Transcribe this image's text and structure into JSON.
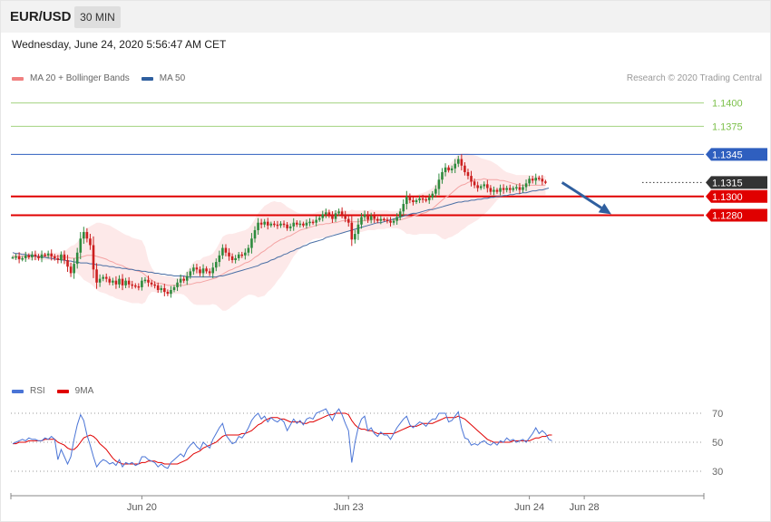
{
  "header": {
    "symbol": "EUR/USD",
    "timeframe": "30 MIN",
    "datetime": "Wednesday, June 24, 2020 5:56:47 AM CET"
  },
  "price_legend": [
    {
      "label": "MA 20 + Bollinger Bands",
      "color": "#f08080"
    },
    {
      "label": "MA 50",
      "color": "#2f5f9f"
    }
  ],
  "rsi_legend": [
    {
      "label": "RSI",
      "color": "#4a74d6"
    },
    {
      "label": "9MA",
      "color": "#e00000"
    }
  ],
  "copyright": "Research © 2020 Trading Central",
  "colors": {
    "bull": "#2e8b3e",
    "bear": "#cc1f1f",
    "band": "#fde3e3",
    "ma20": "#f4a3a3",
    "ma50": "#4a6fa5",
    "resistance_green": "#7cc04a",
    "resistance_blue": "#2f5fbf",
    "support_red": "#e00000",
    "arrow": "#2f5f9f",
    "current_price_bg": "#333333"
  },
  "chart_data": [
    {
      "type": "candlestick",
      "ylim": [
        1.1108,
        1.1418
      ],
      "levels": [
        {
          "value": 1.14,
          "label": "1.1400",
          "kind": "line",
          "color": "#7cc04a"
        },
        {
          "value": 1.1375,
          "label": "1.1375",
          "kind": "line",
          "color": "#7cc04a"
        },
        {
          "value": 1.1345,
          "label": "1.1345",
          "kind": "badge",
          "color": "#2f5fbf"
        },
        {
          "value": 1.1315,
          "label": "1.1315",
          "kind": "current",
          "color": "#333333"
        },
        {
          "value": 1.13,
          "label": "1.1300",
          "kind": "badge",
          "color": "#e00000"
        },
        {
          "value": 1.128,
          "label": "1.1280",
          "kind": "badge",
          "color": "#e00000"
        }
      ],
      "x_ticks": [
        {
          "label": "Jun 20",
          "index": 40
        },
        {
          "label": "Jun 23",
          "index": 104
        },
        {
          "label": "Jun 24",
          "index": 160
        },
        {
          "label": "Jun 28",
          "index": 177
        }
      ],
      "close": [
        1.1235,
        1.1236,
        1.1233,
        1.1234,
        1.1237,
        1.1235,
        1.1238,
        1.1236,
        1.1234,
        1.1238,
        1.1237,
        1.1239,
        1.1236,
        1.1234,
        1.1232,
        1.1238,
        1.1232,
        1.1225,
        1.1218,
        1.1228,
        1.124,
        1.1255,
        1.1262,
        1.1255,
        1.1248,
        1.1222,
        1.1208,
        1.1212,
        1.1214,
        1.1212,
        1.1208,
        1.121,
        1.1206,
        1.1212,
        1.1205,
        1.121,
        1.1206,
        1.1205,
        1.1204,
        1.1203,
        1.121,
        1.1211,
        1.1208,
        1.1206,
        1.1205,
        1.12,
        1.1202,
        1.1198,
        1.1196,
        1.12,
        1.1203,
        1.1208,
        1.1212,
        1.121,
        1.1215,
        1.122,
        1.1224,
        1.1222,
        1.1218,
        1.1223,
        1.122,
        1.1218,
        1.1224,
        1.123,
        1.1237,
        1.1245,
        1.124,
        1.1236,
        1.1232,
        1.1234,
        1.1238,
        1.1237,
        1.124,
        1.1245,
        1.1255,
        1.1264,
        1.1272,
        1.127,
        1.1273,
        1.1269,
        1.1271,
        1.127,
        1.1269,
        1.1271,
        1.127,
        1.1266,
        1.1268,
        1.1272,
        1.127,
        1.1271,
        1.1269,
        1.1272,
        1.1273,
        1.1272,
        1.1275,
        1.1277,
        1.1281,
        1.1283,
        1.128,
        1.1276,
        1.1282,
        1.1284,
        1.1281,
        1.1276,
        1.1272,
        1.1254,
        1.126,
        1.127,
        1.1278,
        1.1281,
        1.1275,
        1.1279,
        1.1276,
        1.1274,
        1.1276,
        1.1275,
        1.1274,
        1.1272,
        1.1274,
        1.1278,
        1.1284,
        1.1292,
        1.13,
        1.1296,
        1.1294,
        1.1296,
        1.1298,
        1.1297,
        1.1296,
        1.1299,
        1.1303,
        1.1308,
        1.1318,
        1.1326,
        1.1331,
        1.1328,
        1.133,
        1.1335,
        1.134,
        1.1333,
        1.1326,
        1.1322,
        1.1316,
        1.1312,
        1.1309,
        1.1311,
        1.1313,
        1.1309,
        1.1305,
        1.1307,
        1.1305,
        1.1309,
        1.1307,
        1.1309,
        1.1307,
        1.1309,
        1.131,
        1.1307,
        1.131,
        1.1314,
        1.1319,
        1.1317,
        1.132,
        1.1319,
        1.1316,
        1.1315
      ],
      "ma20": [
        1.1236,
        1.1236,
        1.1236,
        1.1236,
        1.1236,
        1.1236,
        1.1236,
        1.1236,
        1.1236,
        1.1236,
        1.1236,
        1.1236,
        1.1236,
        1.1236,
        1.1236,
        1.1236,
        1.1235,
        1.1235,
        1.1234,
        1.1234,
        1.1234,
        1.1235,
        1.1236,
        1.1237,
        1.1237,
        1.1237,
        1.1236,
        1.1235,
        1.1234,
        1.1233,
        1.1231,
        1.123,
        1.1228,
        1.1227,
        1.1226,
        1.1224,
        1.1223,
        1.1222,
        1.1221,
        1.122,
        1.1219,
        1.1216,
        1.1213,
        1.1211,
        1.1208,
        1.1207,
        1.1207,
        1.1206,
        1.1205,
        1.1205,
        1.1205,
        1.1205,
        1.1205,
        1.1205,
        1.1206,
        1.1206,
        1.1207,
        1.1208,
        1.1208,
        1.1209,
        1.121,
        1.1211,
        1.1212,
        1.1213,
        1.1215,
        1.1217,
        1.1219,
        1.1221,
        1.1222,
        1.1224,
        1.1225,
        1.1227,
        1.1229,
        1.123,
        1.1232,
        1.1235,
        1.1237,
        1.124,
        1.1242,
        1.1245,
        1.1247,
        1.125,
        1.1252,
        1.1254,
        1.1255,
        1.1257,
        1.1258,
        1.126,
        1.1262,
        1.1264,
        1.1265,
        1.1266,
        1.1267,
        1.1268,
        1.1269,
        1.127,
        1.127,
        1.1271,
        1.1271,
        1.1272,
        1.1272,
        1.1273,
        1.1274,
        1.1274,
        1.1274,
        1.1273,
        1.1273,
        1.1273,
        1.1274,
        1.1274,
        1.1274,
        1.1275,
        1.1275,
        1.1275,
        1.1275,
        1.1275,
        1.1275,
        1.1275,
        1.1275,
        1.1275,
        1.1275,
        1.1276,
        1.1277,
        1.1278,
        1.1279,
        1.128,
        1.1281,
        1.1282,
        1.1283,
        1.1285,
        1.1287,
        1.129,
        1.1293,
        1.1296,
        1.1299,
        1.1301,
        1.1304,
        1.1307,
        1.131,
        1.1312,
        1.1313,
        1.1315,
        1.1316,
        1.1317,
        1.1318,
        1.1318,
        1.1319,
        1.1318,
        1.1318,
        1.1318,
        1.1318,
        1.1317,
        1.1317,
        1.1316,
        1.1315,
        1.1314,
        1.1313,
        1.1312,
        1.1312,
        1.1312,
        1.1312,
        1.1312,
        1.1312,
        1.1312,
        1.1312,
        1.1312
      ],
      "bb_upper": [
        1.124,
        1.124,
        1.124,
        1.124,
        1.124,
        1.124,
        1.124,
        1.124,
        1.124,
        1.124,
        1.124,
        1.124,
        1.124,
        1.124,
        1.124,
        1.124,
        1.1241,
        1.1244,
        1.1247,
        1.1248,
        1.1251,
        1.1256,
        1.1262,
        1.1266,
        1.1268,
        1.127,
        1.1272,
        1.1272,
        1.1271,
        1.127,
        1.1269,
        1.1267,
        1.1265,
        1.1263,
        1.1261,
        1.1259,
        1.1258,
        1.1256,
        1.1255,
        1.1254,
        1.1253,
        1.1246,
        1.1232,
        1.1224,
        1.1219,
        1.1217,
        1.1216,
        1.1215,
        1.1215,
        1.1215,
        1.1213,
        1.1213,
        1.1215,
        1.1216,
        1.122,
        1.1225,
        1.123,
        1.1232,
        1.1232,
        1.1235,
        1.1236,
        1.1237,
        1.1239,
        1.1244,
        1.125,
        1.1257,
        1.1259,
        1.126,
        1.126,
        1.1261,
        1.1262,
        1.1263,
        1.1264,
        1.1266,
        1.127,
        1.1276,
        1.1282,
        1.1286,
        1.129,
        1.1292,
        1.1294,
        1.1295,
        1.1294,
        1.1294,
        1.1292,
        1.1289,
        1.1287,
        1.1285,
        1.1283,
        1.1282,
        1.1282,
        1.1282,
        1.1282,
        1.1282,
        1.1283,
        1.1284,
        1.1285,
        1.1286,
        1.1285,
        1.1284,
        1.1285,
        1.1286,
        1.1286,
        1.1285,
        1.1284,
        1.1286,
        1.1285,
        1.1285,
        1.1285,
        1.1285,
        1.1285,
        1.1286,
        1.1285,
        1.1285,
        1.1285,
        1.1285,
        1.1285,
        1.1284,
        1.1284,
        1.1284,
        1.1286,
        1.129,
        1.1295,
        1.1297,
        1.1299,
        1.1301,
        1.1303,
        1.1304,
        1.1305,
        1.1307,
        1.1309,
        1.1313,
        1.1319,
        1.1325,
        1.133,
        1.1333,
        1.1337,
        1.1341,
        1.1345,
        1.1346,
        1.1346,
        1.1346,
        1.1345,
        1.1344,
        1.1343,
        1.1341,
        1.134,
        1.1339,
        1.1338,
        1.1336,
        1.1334,
        1.1331,
        1.1328,
        1.1326,
        1.1325,
        1.1324,
        1.1323,
        1.1323,
        1.1323,
        1.1323,
        1.1323,
        1.1323,
        1.1322,
        1.1322,
        1.1322,
        1.1322
      ],
      "bb_lower": [
        1.1232,
        1.1232,
        1.1232,
        1.1232,
        1.1232,
        1.1232,
        1.1232,
        1.1232,
        1.1232,
        1.1232,
        1.1232,
        1.1232,
        1.1232,
        1.1232,
        1.1232,
        1.1232,
        1.123,
        1.1226,
        1.1222,
        1.122,
        1.1218,
        1.1215,
        1.1211,
        1.1209,
        1.1207,
        1.1204,
        1.12,
        1.1198,
        1.1197,
        1.1196,
        1.1194,
        1.1193,
        1.1191,
        1.119,
        1.1189,
        1.1188,
        1.1187,
        1.1186,
        1.1186,
        1.1186,
        1.1185,
        1.1187,
        1.1194,
        1.1198,
        1.1198,
        1.1197,
        1.1198,
        1.1197,
        1.1196,
        1.1195,
        1.1196,
        1.1196,
        1.1196,
        1.1195,
        1.1192,
        1.1188,
        1.1185,
        1.1184,
        1.1184,
        1.1184,
        1.1184,
        1.1184,
        1.1185,
        1.1184,
        1.1181,
        1.1178,
        1.1178,
        1.118,
        1.1183,
        1.1185,
        1.1188,
        1.1191,
        1.1193,
        1.1195,
        1.1195,
        1.1194,
        1.1192,
        1.1193,
        1.1194,
        1.1198,
        1.1201,
        1.1205,
        1.121,
        1.1214,
        1.1219,
        1.1224,
        1.123,
        1.1236,
        1.124,
        1.1245,
        1.1248,
        1.125,
        1.1252,
        1.1254,
        1.1255,
        1.1255,
        1.1256,
        1.1256,
        1.1257,
        1.1259,
        1.126,
        1.1261,
        1.1261,
        1.1262,
        1.1264,
        1.1261,
        1.1261,
        1.1262,
        1.1262,
        1.1263,
        1.1264,
        1.1264,
        1.1264,
        1.1265,
        1.1265,
        1.1265,
        1.1266,
        1.1266,
        1.1266,
        1.1266,
        1.1265,
        1.1263,
        1.126,
        1.126,
        1.1259,
        1.1259,
        1.126,
        1.126,
        1.126,
        1.126,
        1.126,
        1.126,
        1.1258,
        1.1255,
        1.1254,
        1.1256,
        1.1257,
        1.1259,
        1.1261,
        1.1264,
        1.1266,
        1.1269,
        1.1271,
        1.1273,
        1.1275,
        1.1278,
        1.1281,
        1.1284,
        1.1288,
        1.1292,
        1.1296,
        1.1299,
        1.1302,
        1.1303,
        1.1303,
        1.1303,
        1.1303,
        1.1303,
        1.1302,
        1.1302,
        1.1302,
        1.1302,
        1.1302,
        1.1302,
        1.1302,
        1.1302
      ],
      "ma50": [
        1.124,
        1.1239,
        1.1239,
        1.1238,
        1.1238,
        1.1237,
        1.1237,
        1.1236,
        1.1236,
        1.1235,
        1.1235,
        1.1234,
        1.1234,
        1.1233,
        1.1233,
        1.1232,
        1.1232,
        1.1231,
        1.1231,
        1.123,
        1.123,
        1.1229,
        1.1229,
        1.1229,
        1.1228,
        1.1228,
        1.1227,
        1.1227,
        1.1226,
        1.1226,
        1.1225,
        1.1225,
        1.1224,
        1.1224,
        1.1223,
        1.1223,
        1.1222,
        1.1222,
        1.1221,
        1.1221,
        1.122,
        1.122,
        1.1219,
        1.1219,
        1.1218,
        1.1218,
        1.1217,
        1.1217,
        1.1216,
        1.1216,
        1.1215,
        1.1215,
        1.1215,
        1.1215,
        1.1214,
        1.1214,
        1.1214,
        1.1214,
        1.1214,
        1.1214,
        1.1214,
        1.1214,
        1.1214,
        1.1214,
        1.1215,
        1.1215,
        1.1216,
        1.1217,
        1.1218,
        1.1219,
        1.122,
        1.1221,
        1.1222,
        1.1223,
        1.1224,
        1.1225,
        1.1226,
        1.1228,
        1.1229,
        1.123,
        1.1232,
        1.1233,
        1.1235,
        1.1236,
        1.1238,
        1.1239,
        1.1241,
        1.1242,
        1.1244,
        1.1245,
        1.1247,
        1.1248,
        1.125,
        1.1251,
        1.1252,
        1.1253,
        1.1254,
        1.1256,
        1.1257,
        1.1258,
        1.1259,
        1.126,
        1.1261,
        1.1262,
        1.1263,
        1.1264,
        1.1265,
        1.1266,
        1.1267,
        1.1268,
        1.1269,
        1.127,
        1.1271,
        1.1272,
        1.1272,
        1.1273,
        1.1274,
        1.1275,
        1.1276,
        1.1277,
        1.1278,
        1.1279,
        1.128,
        1.1281,
        1.1282,
        1.1282,
        1.1283,
        1.1284,
        1.1285,
        1.1286,
        1.1286,
        1.1287,
        1.1288,
        1.1289,
        1.129,
        1.1291,
        1.1292,
        1.1293,
        1.1294,
        1.1294,
        1.1295,
        1.1295,
        1.1296,
        1.1296,
        1.1297,
        1.1297,
        1.1298,
        1.1298,
        1.1299,
        1.1299,
        1.13,
        1.13,
        1.1301,
        1.1301,
        1.1302,
        1.1302,
        1.1303,
        1.1303,
        1.1304,
        1.1304,
        1.1305,
        1.1306,
        1.1306,
        1.1307,
        1.1307,
        1.1308,
        1.1309
      ],
      "projection": {
        "from_index": 169,
        "from_value": 1.1315,
        "to_index": 182,
        "to_value": 1.1281
      }
    },
    {
      "type": "line",
      "ylim": [
        20,
        80
      ],
      "levels": [
        {
          "value": 70,
          "label": "70"
        },
        {
          "value": 50,
          "label": "50"
        },
        {
          "value": 30,
          "label": "30"
        }
      ],
      "rsi": [
        49,
        50,
        51,
        52,
        51,
        53,
        52,
        52,
        51,
        51,
        53,
        52,
        54,
        52,
        38,
        45,
        40,
        35,
        40,
        52,
        62,
        69,
        65,
        55,
        48,
        40,
        33,
        36,
        38,
        37,
        35,
        36,
        34,
        38,
        33,
        36,
        35,
        36,
        34,
        35,
        40,
        40,
        38,
        37,
        36,
        33,
        35,
        33,
        32,
        36,
        38,
        40,
        42,
        40,
        45,
        48,
        50,
        47,
        45,
        50,
        48,
        46,
        52,
        56,
        60,
        63,
        55,
        52,
        49,
        50,
        54,
        53,
        56,
        60,
        65,
        68,
        70,
        66,
        68,
        64,
        67,
        65,
        64,
        66,
        64,
        58,
        62,
        66,
        63,
        65,
        62,
        66,
        67,
        66,
        70,
        71,
        72,
        73,
        69,
        65,
        70,
        73,
        69,
        63,
        58,
        36,
        50,
        60,
        66,
        68,
        58,
        60,
        56,
        54,
        57,
        55,
        55,
        52,
        56,
        60,
        63,
        66,
        68,
        62,
        60,
        62,
        64,
        63,
        61,
        64,
        66,
        66,
        70,
        70,
        70,
        64,
        65,
        68,
        71,
        60,
        53,
        52,
        48,
        49,
        48,
        50,
        51,
        49,
        48,
        50,
        48,
        51,
        50,
        53,
        51,
        52,
        50,
        51,
        52,
        50,
        53,
        56,
        60,
        56,
        58,
        56,
        52,
        51
      ],
      "rsi_ma": [
        49,
        49,
        50,
        50,
        50,
        51,
        51,
        51,
        51,
        51,
        52,
        52,
        52,
        52,
        50,
        49,
        48,
        46,
        45,
        45,
        47,
        50,
        53,
        54,
        55,
        54,
        52,
        49,
        47,
        45,
        42,
        39,
        37,
        36,
        35,
        35,
        35,
        35,
        35,
        35,
        36,
        36,
        37,
        37,
        37,
        36,
        36,
        35,
        35,
        35,
        35,
        35,
        36,
        37,
        38,
        40,
        42,
        43,
        44,
        46,
        47,
        48,
        49,
        50,
        52,
        54,
        55,
        55,
        55,
        55,
        55,
        56,
        56,
        57,
        58,
        60,
        62,
        63,
        65,
        66,
        67,
        67,
        67,
        66,
        66,
        65,
        64,
        64,
        64,
        64,
        63,
        63,
        64,
        64,
        65,
        66,
        67,
        68,
        69,
        69,
        70,
        70,
        70,
        70,
        69,
        65,
        62,
        60,
        59,
        59,
        58,
        58,
        57,
        56,
        56,
        56,
        56,
        56,
        56,
        57,
        58,
        59,
        60,
        61,
        61,
        61,
        62,
        63,
        63,
        63,
        63,
        64,
        65,
        66,
        67,
        67,
        67,
        67,
        68,
        67,
        66,
        64,
        62,
        60,
        58,
        56,
        54,
        52,
        51,
        50,
        50,
        50,
        50,
        50,
        50,
        51,
        51,
        51,
        51,
        51,
        51,
        52,
        53,
        53,
        54,
        54,
        55,
        55
      ]
    }
  ]
}
